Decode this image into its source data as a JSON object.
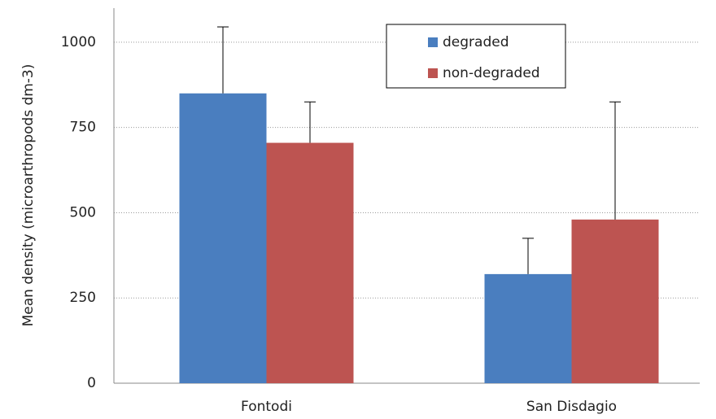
{
  "chart_data": {
    "type": "bar",
    "y_label": "Mean density (microarthropods dm-3)",
    "categories": [
      "Fontodi",
      "San Disdagio"
    ],
    "series": [
      {
        "name": "degraded",
        "color": "#4a7ebf",
        "values": [
          850,
          320
        ],
        "errors": [
          195,
          105
        ]
      },
      {
        "name": "non-degraded",
        "color": "#bd5451",
        "values": [
          705,
          480
        ],
        "errors": [
          120,
          345
        ]
      }
    ],
    "ylim": [
      0,
      1100
    ],
    "yticks": [
      0,
      250,
      500,
      750,
      1000
    ],
    "grid": true
  }
}
